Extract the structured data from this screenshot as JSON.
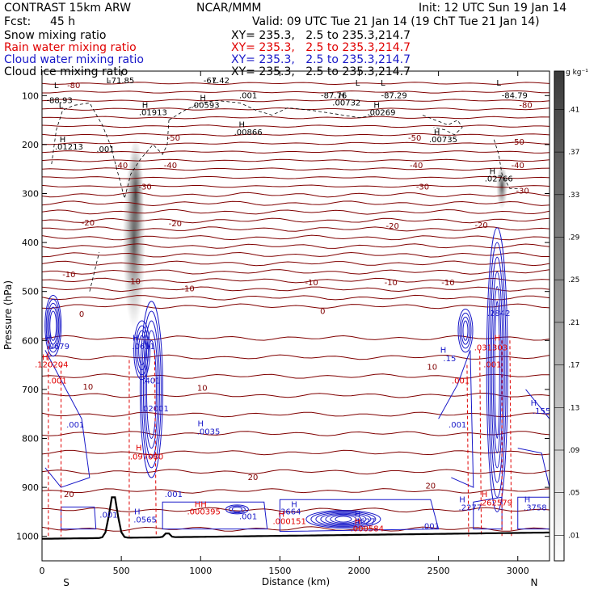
{
  "header": {
    "model": "CONTRAST 15km ARW",
    "center": "NCAR/MMM",
    "init": "Init: 12 UTC Sun 19 Jan 14",
    "fcst_label": "Fcst:",
    "fcst_value": "45 h",
    "valid": "Valid: 09 UTC Tue 21 Jan 14 (19 ChT Tue 21 Jan 14)"
  },
  "fields": [
    {
      "name": "Snow mixing ratio",
      "xy": "XY= 235.3,   2.5 to 235.3,214.7",
      "color": "#000000"
    },
    {
      "name": "Rain water mixing ratio",
      "xy": "XY= 235.3,   2.5 to 235.3,214.7",
      "color": "#e00000"
    },
    {
      "name": "Cloud water mixing ratio",
      "xy": "XY= 235.3,   2.5 to 235.3,214.7",
      "color": "#1818c8"
    },
    {
      "name": "Cloud ice mixing ratio",
      "xy": "XY= 235.3,   2.5 to 235.3,214.7",
      "color": "#000000"
    }
  ],
  "chart_data": {
    "type": "contour-cross-section",
    "xlabel": "Distance (km)",
    "ylabel": "Pressure (hPa)",
    "xlim": [
      0,
      3200
    ],
    "ylim": [
      1050,
      50
    ],
    "x_ticks": [
      0,
      500,
      1000,
      1500,
      2000,
      2500,
      3000
    ],
    "y_ticks": [
      100,
      200,
      300,
      400,
      500,
      600,
      700,
      800,
      900,
      1000
    ],
    "end_labels": {
      "left": "S",
      "right": "N"
    },
    "colorbar": {
      "unit": "g kg⁻¹",
      "levels": [
        ".01",
        ".05",
        ".09",
        ".13",
        ".17",
        ".21",
        ".25",
        ".29",
        ".33",
        ".37",
        ".41"
      ]
    },
    "temperature_contours": [
      {
        "label": "-80",
        "x": 3050,
        "p": 125
      },
      {
        "label": "-80",
        "x": 200,
        "p": 85
      },
      {
        "label": "-50",
        "x": 2350,
        "p": 192
      },
      {
        "label": "-50",
        "x": 3000,
        "p": 200
      },
      {
        "label": "-50",
        "x": 830,
        "p": 192
      },
      {
        "label": "-40",
        "x": 500,
        "p": 248
      },
      {
        "label": "-40",
        "x": 810,
        "p": 248
      },
      {
        "label": "-40",
        "x": 2360,
        "p": 248
      },
      {
        "label": "-40",
        "x": 3000,
        "p": 248
      },
      {
        "label": "-30",
        "x": 650,
        "p": 292
      },
      {
        "label": "-30",
        "x": 2400,
        "p": 292
      },
      {
        "label": "-30",
        "x": 3030,
        "p": 300
      },
      {
        "label": "-20",
        "x": 290,
        "p": 365
      },
      {
        "label": "-20",
        "x": 840,
        "p": 367
      },
      {
        "label": "-20",
        "x": 2210,
        "p": 372
      },
      {
        "label": "-20",
        "x": 2770,
        "p": 370
      },
      {
        "label": "-10",
        "x": 170,
        "p": 471
      },
      {
        "label": "-10",
        "x": 580,
        "p": 485
      },
      {
        "label": "-10",
        "x": 920,
        "p": 500
      },
      {
        "label": "-10",
        "x": 1700,
        "p": 487
      },
      {
        "label": "-10",
        "x": 2200,
        "p": 487
      },
      {
        "label": "-10",
        "x": 2560,
        "p": 487
      },
      {
        "label": "0",
        "x": 250,
        "p": 552
      },
      {
        "label": "0",
        "x": 1770,
        "p": 546
      },
      {
        "label": "10",
        "x": 2460,
        "p": 660
      },
      {
        "label": "10",
        "x": 290,
        "p": 700
      },
      {
        "label": "10",
        "x": 1010,
        "p": 703
      },
      {
        "label": "20",
        "x": 1330,
        "p": 885
      },
      {
        "label": "20",
        "x": 2450,
        "p": 902
      },
      {
        "label": "20",
        "x": 170,
        "p": 920
      }
    ],
    "cloud_ice_labels": [
      {
        "label": "L",
        "x": 90,
        "p": 85
      },
      {
        "label": "L",
        "x": 120,
        "p": 125
      },
      {
        "label": "-88.93",
        "x": 110,
        "p": 115
      },
      {
        "label": "L",
        "x": 420,
        "p": 75
      },
      {
        "label": "-71.85",
        "x": 500,
        "p": 75
      },
      {
        "label": "L",
        "x": 1090,
        "p": 75
      },
      {
        "label": "-67.42",
        "x": 1100,
        "p": 75
      },
      {
        "label": "L",
        "x": 1990,
        "p": 80
      },
      {
        "label": "-87.76",
        "x": 1840,
        "p": 105
      },
      {
        "label": "L",
        "x": 2150,
        "p": 80
      },
      {
        "label": "-87.29",
        "x": 2220,
        "p": 105
      },
      {
        "label": "L",
        "x": 2880,
        "p": 80
      },
      {
        "label": "-84.79",
        "x": 2980,
        "p": 105
      },
      {
        "label": "H",
        "x": 650,
        "p": 125
      },
      {
        "label": ".01913",
        "x": 700,
        "p": 140
      },
      {
        "label": "H",
        "x": 1015,
        "p": 110
      },
      {
        "label": ".00593",
        "x": 1030,
        "p": 125
      },
      {
        "label": ".001",
        "x": 1300,
        "p": 105
      },
      {
        "label": "H",
        "x": 1890,
        "p": 105
      },
      {
        "label": ".00732",
        "x": 1920,
        "p": 120
      },
      {
        "label": "H",
        "x": 2110,
        "p": 125
      },
      {
        "label": ".00269",
        "x": 2140,
        "p": 140
      },
      {
        "label": "H",
        "x": 1260,
        "p": 165
      },
      {
        "label": ".00866",
        "x": 1300,
        "p": 180
      },
      {
        "label": "H",
        "x": 2490,
        "p": 180
      },
      {
        "label": ".00735",
        "x": 2530,
        "p": 195
      },
      {
        "label": "H",
        "x": 130,
        "p": 195
      },
      {
        "label": ".01213",
        "x": 170,
        "p": 210
      },
      {
        "label": ".001",
        "x": 400,
        "p": 215
      },
      {
        "label": "H",
        "x": 2840,
        "p": 260
      },
      {
        "label": ".02766",
        "x": 2880,
        "p": 275
      }
    ],
    "cloud_water_labels": [
      {
        "label": "H",
        "x": 40,
        "p": 600
      },
      {
        "label": ".0679",
        "x": 100,
        "p": 618
      },
      {
        "label": "H",
        "x": 590,
        "p": 600
      },
      {
        "label": ".0611",
        "x": 640,
        "p": 618
      },
      {
        "label": ".401",
        "x": 690,
        "p": 688
      },
      {
        "label": ".02001",
        "x": 710,
        "p": 745
      },
      {
        "label": "H",
        "x": 1000,
        "p": 775
      },
      {
        "label": ".0035",
        "x": 1050,
        "p": 792
      },
      {
        "label": ".001",
        "x": 210,
        "p": 778
      },
      {
        "label": ".001",
        "x": 2620,
        "p": 778
      },
      {
        "label": "H",
        "x": 2530,
        "p": 625
      },
      {
        "label": ".15",
        "x": 2570,
        "p": 642
      },
      {
        "label": ".2842",
        "x": 2880,
        "p": 550
      },
      {
        "label": "H",
        "x": 3100,
        "p": 733
      },
      {
        "label": ".155",
        "x": 3150,
        "p": 750
      },
      {
        "label": ".001",
        "x": 830,
        "p": 920
      },
      {
        "label": "H",
        "x": 600,
        "p": 955
      },
      {
        "label": ".0565",
        "x": 650,
        "p": 972
      },
      {
        "label": ".001",
        "x": 420,
        "p": 962
      },
      {
        "label": ".001",
        "x": 1300,
        "p": 965
      },
      {
        "label": ".3664",
        "x": 1560,
        "p": 955
      },
      {
        "label": "H",
        "x": 1590,
        "p": 940
      },
      {
        "label": "H",
        "x": 1990,
        "p": 960
      },
      {
        "label": ".4627",
        "x": 2030,
        "p": 975
      },
      {
        "label": ".001",
        "x": 2450,
        "p": 985
      },
      {
        "label": "H",
        "x": 2650,
        "p": 930
      },
      {
        "label": ".2277",
        "x": 2700,
        "p": 947
      },
      {
        "label": "H",
        "x": 3060,
        "p": 930
      },
      {
        "label": ".3758",
        "x": 3110,
        "p": 947
      }
    ],
    "rain_water_labels": [
      {
        "label": "H",
        "x": 20,
        "p": 640
      },
      {
        "label": ".120204",
        "x": 60,
        "p": 655
      },
      {
        "label": ".001",
        "x": 100,
        "p": 688
      },
      {
        "label": "H",
        "x": 610,
        "p": 825
      },
      {
        "label": ".097080",
        "x": 660,
        "p": 843
      },
      {
        "label": ".001",
        "x": 2640,
        "p": 688
      },
      {
        "label": "H",
        "x": 2870,
        "p": 600
      },
      {
        "label": ".031303",
        "x": 2830,
        "p": 620
      },
      {
        "label": ".001",
        "x": 2840,
        "p": 655
      },
      {
        "label": "HH",
        "x": 1000,
        "p": 940
      },
      {
        "label": ".000395",
        "x": 1020,
        "p": 955
      },
      {
        "label": "H",
        "x": 1510,
        "p": 960
      },
      {
        "label": ".000151",
        "x": 1560,
        "p": 975
      },
      {
        "label": "H",
        "x": 1990,
        "p": 975
      },
      {
        "label": ".000584",
        "x": 2050,
        "p": 990
      },
      {
        "label": "H",
        "x": 2790,
        "p": 920
      },
      {
        "label": ".262579",
        "x": 2860,
        "p": 937
      }
    ]
  }
}
